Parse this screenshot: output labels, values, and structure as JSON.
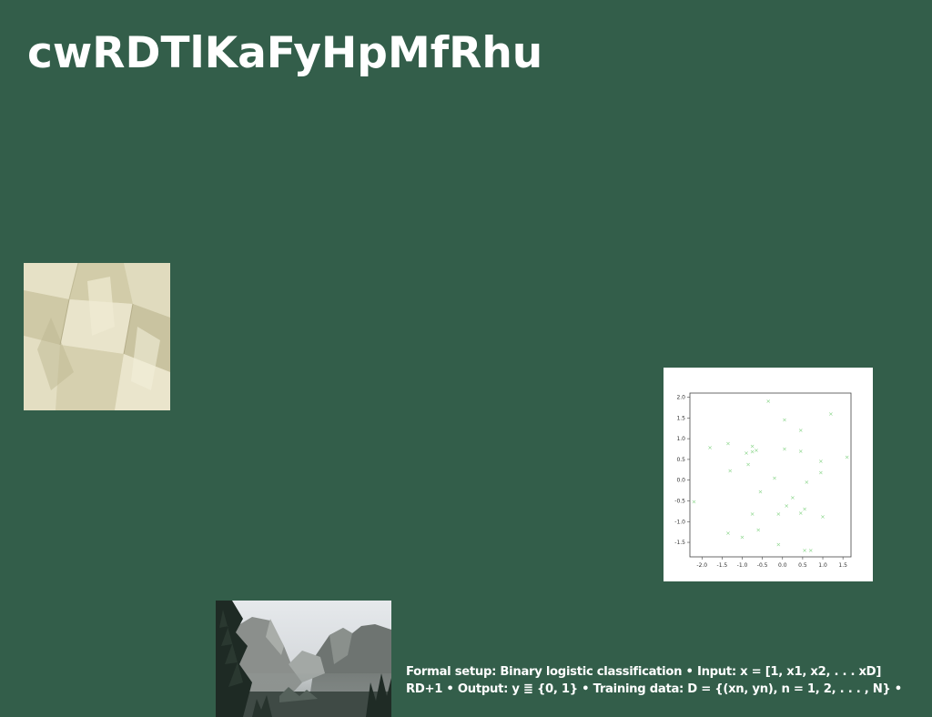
{
  "slide": {
    "title": "cwRDTlKaFyHpMfRhu",
    "caption_line1": "Formal setup: Binary logistic classification • Input: x = [1, x1, x2, . . . xD]",
    "caption_line2": "RD+1 • Output: y ≣ {0, 1} • Training data: D = {(xn, yn), n = 1, 2, . . . , N} •"
  },
  "images": {
    "paper_texture": "folded-paper-image",
    "scatter_plot": "scatter-plot-image",
    "landscape": "valley-landscape-photo"
  },
  "chart_data": {
    "type": "scatter",
    "title": "",
    "xlabel": "",
    "ylabel": "",
    "xlim": [
      -2.3,
      1.7
    ],
    "ylim": [
      -1.85,
      2.1
    ],
    "xticks": [
      "-2.0",
      "-1.5",
      "-1.0",
      "-0.5",
      "0.0",
      "0.5",
      "1.0",
      "1.5"
    ],
    "yticks": [
      "2.0",
      "1.5",
      "1.0",
      "0.5",
      "0.0",
      "-0.5",
      "-1.0",
      "-1.5"
    ],
    "xtick_values": [
      -2.0,
      -1.5,
      -1.0,
      -0.5,
      0.0,
      0.5,
      1.0,
      1.5
    ],
    "ytick_values": [
      2.0,
      1.5,
      1.0,
      0.5,
      0.0,
      -0.5,
      -1.0,
      -1.5
    ],
    "marker_color": "#86d486",
    "series": [
      {
        "x": [
          -0.35,
          0.05,
          1.2,
          0.45,
          -1.8,
          -1.35,
          0.05,
          0.45,
          0.95,
          1.6,
          -0.9,
          -0.75,
          -0.75,
          -0.85,
          -0.65,
          -1.3,
          -0.2,
          0.95,
          0.6,
          -0.55,
          -2.2,
          -0.1,
          0.1,
          0.25,
          0.55,
          -0.75,
          0.45,
          1.0,
          -1.35,
          -0.6,
          -1.0,
          -0.1,
          0.55,
          0.7
        ],
        "y": [
          1.9,
          1.45,
          1.6,
          1.2,
          0.78,
          0.88,
          0.75,
          0.7,
          0.45,
          0.55,
          0.65,
          0.68,
          0.82,
          0.38,
          0.72,
          0.22,
          0.05,
          0.18,
          -0.05,
          -0.28,
          -0.52,
          -0.82,
          -0.62,
          -0.42,
          -0.7,
          -0.82,
          -0.8,
          -0.88,
          -1.28,
          -1.2,
          -1.38,
          -1.55,
          -1.7,
          -1.7
        ]
      }
    ]
  }
}
